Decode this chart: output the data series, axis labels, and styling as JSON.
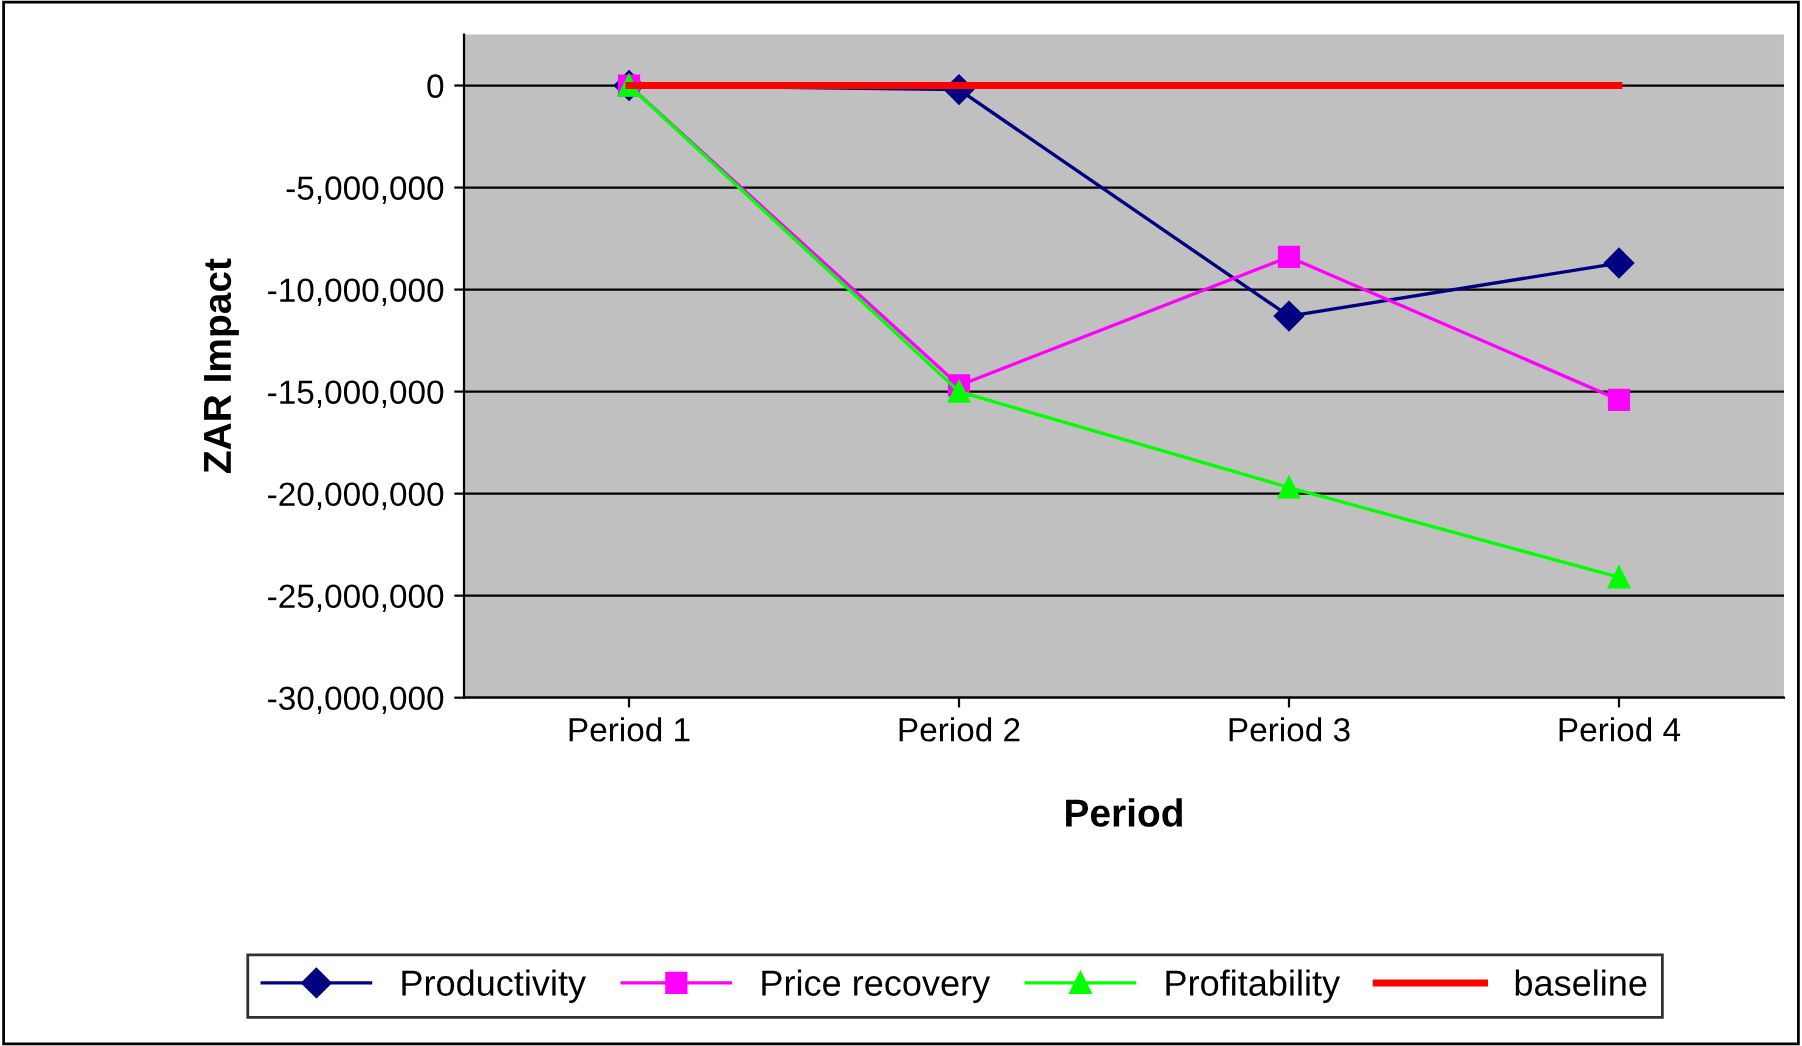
{
  "chart_data": {
    "type": "line",
    "xlabel": "Period",
    "ylabel": "ZAR Impact",
    "categories": [
      "Period 1",
      "Period 2",
      "Period 3",
      "Period 4"
    ],
    "series": [
      {
        "name": "Productivity",
        "color": "#000080",
        "marker": "diamond",
        "values": [
          0,
          -200000,
          -11300000,
          -8700000
        ]
      },
      {
        "name": "Price recovery",
        "color": "#ff00ff",
        "marker": "square",
        "values": [
          0,
          -14700000,
          -8400000,
          -15400000
        ]
      },
      {
        "name": "Profitability",
        "color": "#00ff00",
        "marker": "triangle",
        "values": [
          0,
          -15000000,
          -19700000,
          -24100000
        ]
      },
      {
        "name": "baseline",
        "color": "#ff0000",
        "marker": "none",
        "values": [
          0,
          0,
          0,
          0
        ]
      }
    ],
    "ylim": [
      -30000000,
      2500000
    ],
    "yticks": [
      {
        "value": -30000000,
        "label": "-30,000,000"
      },
      {
        "value": -25000000,
        "label": "-25,000,000"
      },
      {
        "value": -20000000,
        "label": "-20,000,000"
      },
      {
        "value": -15000000,
        "label": "-15,000,000"
      },
      {
        "value": -10000000,
        "label": "-10,000,000"
      },
      {
        "value": -5000000,
        "label": "-5,000,000"
      },
      0
    ],
    "grid": "y",
    "legend": "bottom"
  }
}
